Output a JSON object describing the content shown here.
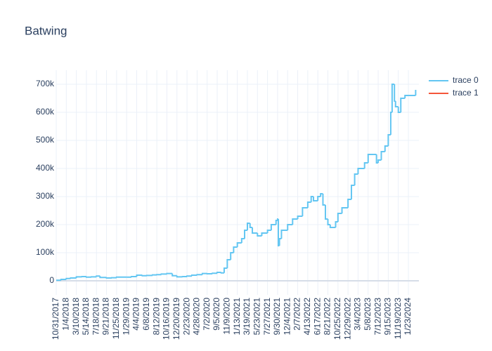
{
  "chart_data": {
    "type": "line",
    "shape": "step",
    "title": "Batwing",
    "grid": true,
    "legend": "right",
    "xlim": [
      "10/31/2017",
      "3/31/2024"
    ],
    "xticks": [
      "10/31/2017",
      "1/4/2018",
      "3/10/2018",
      "5/14/2018",
      "7/18/2018",
      "9/21/2018",
      "11/25/2018",
      "1/29/2019",
      "4/4/2019",
      "6/8/2019",
      "8/12/2019",
      "10/16/2019",
      "12/20/2019",
      "2/23/2020",
      "4/28/2020",
      "7/2/2020",
      "9/5/2020",
      "11/9/2020",
      "1/13/2021",
      "3/19/2021",
      "5/23/2021",
      "7/27/2021",
      "9/30/2021",
      "12/4/2021",
      "2/7/2022",
      "4/13/2022",
      "6/17/2022",
      "8/21/2022",
      "10/25/2022",
      "12/29/2022",
      "3/4/2023",
      "5/8/2023",
      "7/12/2023",
      "9/15/2023",
      "11/19/2023",
      "1/23/2024"
    ],
    "ylim": [
      -50000,
      750000
    ],
    "yticks": [
      0,
      {
        "value": 100000,
        "label": "100k"
      },
      {
        "value": 200000,
        "label": "200k"
      },
      {
        "value": 300000,
        "label": "300k"
      },
      {
        "value": 400000,
        "label": "400k"
      },
      {
        "value": 500000,
        "label": "500k"
      },
      {
        "value": 600000,
        "label": "600k"
      },
      {
        "value": 700000,
        "label": "700k"
      }
    ],
    "series": [
      {
        "name": "trace 0",
        "color": "#63c6f2",
        "x": [
          "10/31/2017",
          "12/1/2017",
          "1/4/2018",
          "2/1/2018",
          "3/10/2018",
          "4/15/2018",
          "5/14/2018",
          "6/15/2018",
          "7/18/2018",
          "8/10/2018",
          "9/21/2018",
          "10/25/2018",
          "11/25/2018",
          "1/29/2019",
          "3/1/2019",
          "4/4/2019",
          "5/10/2019",
          "6/8/2019",
          "7/15/2019",
          "8/12/2019",
          "9/10/2019",
          "10/16/2019",
          "11/20/2019",
          "12/20/2019",
          "1/25/2020",
          "2/23/2020",
          "3/25/2020",
          "4/28/2020",
          "6/1/2020",
          "7/2/2020",
          "8/5/2020",
          "9/5/2020",
          "10/1/2020",
          "10/20/2020",
          "11/9/2020",
          "12/1/2020",
          "12/20/2020",
          "1/13/2021",
          "2/10/2021",
          "3/1/2021",
          "3/19/2021",
          "4/5/2021",
          "4/20/2021",
          "5/23/2021",
          "6/20/2021",
          "7/27/2021",
          "8/20/2021",
          "9/20/2021",
          "9/30/2021",
          "10/5/2021",
          "10/12/2021",
          "10/25/2021",
          "12/4/2021",
          "1/5/2022",
          "2/7/2022",
          "3/10/2022",
          "4/13/2022",
          "5/5/2022",
          "5/20/2022",
          "6/17/2022",
          "7/5/2022",
          "7/20/2022",
          "8/5/2022",
          "8/21/2022",
          "9/5/2022",
          "10/10/2022",
          "10/25/2022",
          "11/20/2022",
          "12/29/2022",
          "1/20/2023",
          "2/10/2023",
          "3/4/2023",
          "4/15/2023",
          "5/8/2023",
          "6/10/2023",
          "7/1/2023",
          "7/12/2023",
          "8/1/2023",
          "8/25/2023",
          "9/15/2023",
          "10/1/2023",
          "10/10/2023",
          "10/25/2023",
          "11/1/2023",
          "11/19/2023",
          "12/5/2023",
          "1/1/2024",
          "1/23/2024",
          "3/10/2024"
        ],
        "values": [
          2000,
          5000,
          8000,
          10000,
          14000,
          15000,
          13000,
          14000,
          17000,
          12000,
          10000,
          11000,
          13000,
          13000,
          15000,
          20000,
          18000,
          19000,
          21000,
          22000,
          24000,
          26000,
          18000,
          14000,
          15000,
          17000,
          20000,
          22000,
          26000,
          25000,
          27000,
          30000,
          28000,
          45000,
          75000,
          100000,
          120000,
          135000,
          150000,
          180000,
          205000,
          190000,
          170000,
          160000,
          170000,
          180000,
          200000,
          215000,
          220000,
          125000,
          150000,
          180000,
          200000,
          220000,
          230000,
          260000,
          280000,
          300000,
          285000,
          300000,
          310000,
          270000,
          220000,
          200000,
          190000,
          210000,
          240000,
          260000,
          290000,
          340000,
          380000,
          400000,
          420000,
          450000,
          450000,
          420000,
          430000,
          460000,
          480000,
          520000,
          600000,
          700000,
          640000,
          620000,
          600000,
          650000,
          660000,
          660000,
          680000
        ]
      },
      {
        "name": "trace 1",
        "color": "#f4563a",
        "x": [],
        "values": []
      }
    ]
  }
}
